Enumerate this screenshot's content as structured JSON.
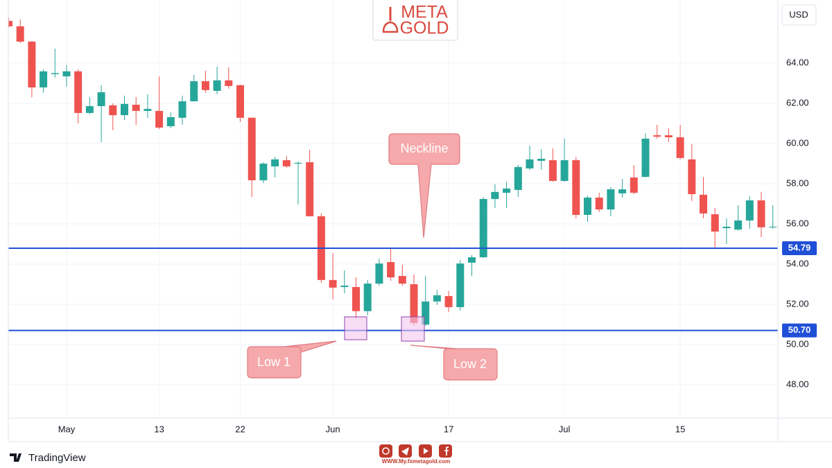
{
  "chart_data": {
    "type": "candlestick",
    "currency": "USD",
    "categories": [
      null,
      null,
      null,
      null,
      null,
      "May",
      null,
      null,
      null,
      null,
      null,
      null,
      null,
      "13",
      null,
      null,
      null,
      null,
      null,
      null,
      "22",
      null,
      null,
      null,
      null,
      null,
      null,
      null,
      "Jun",
      null,
      null,
      null,
      null,
      null,
      null,
      null,
      null,
      null,
      "17",
      null,
      null,
      null,
      null,
      null,
      null,
      null,
      null,
      null,
      "Jul",
      null,
      null,
      null,
      null,
      null,
      null,
      null,
      null,
      null,
      "15",
      null,
      null,
      null,
      null,
      null,
      null,
      null,
      null
    ],
    "series": [
      {
        "open": [
          66.1,
          65.83,
          65.07,
          62.79,
          63.45,
          63.34,
          63.59,
          61.52,
          61.86,
          61.9,
          61.41,
          61.93,
          61.62,
          61.62,
          60.86,
          61.28,
          62.1,
          63.1,
          62.62,
          63.14,
          62.9,
          61.28,
          58.17,
          58.86,
          59.17,
          59.0,
          59.07,
          56.38,
          53.21,
          52.86,
          52.86,
          51.66,
          53.03,
          54.1,
          53.41,
          53.0,
          50.99,
          52.14,
          52.41,
          51.86,
          54.07,
          54.34,
          57.24,
          57.55,
          57.69,
          58.76,
          59.14,
          59.17,
          58.14,
          59.17,
          56.45,
          57.31,
          56.72,
          57.52,
          58.31,
          58.34,
          60.41,
          60.41,
          60.31,
          59.21,
          57.45,
          56.48,
          55.79,
          55.72,
          56.17,
          57.17,
          55.83
        ],
        "high": [
          66.28,
          66.17,
          65.1,
          63.69,
          64.72,
          63.9,
          63.69,
          62.3,
          62.9,
          62.0,
          62.38,
          62.31,
          62.45,
          63.34,
          61.55,
          62.38,
          63.41,
          63.62,
          63.83,
          63.79,
          62.93,
          61.31,
          59.07,
          59.34,
          59.38,
          59.1,
          59.69,
          56.52,
          54.55,
          53.69,
          53.34,
          53.21,
          54.28,
          54.79,
          53.97,
          53.48,
          53.41,
          52.72,
          52.66,
          54.21,
          54.45,
          57.34,
          57.97,
          58.1,
          58.93,
          59.9,
          59.72,
          59.76,
          60.24,
          59.34,
          57.41,
          57.55,
          57.83,
          58.24,
          58.93,
          60.52,
          60.93,
          60.76,
          60.93,
          59.97,
          58.34,
          56.79,
          56.28,
          56.93,
          57.38,
          57.59,
          56.93
        ],
        "low": [
          65.76,
          65.0,
          62.3,
          62.52,
          63.28,
          62.83,
          61.0,
          61.45,
          60.07,
          60.66,
          61.17,
          60.93,
          61.28,
          60.72,
          60.76,
          60.93,
          62.1,
          62.52,
          62.45,
          62.72,
          61.07,
          57.34,
          58.03,
          58.31,
          58.79,
          56.97,
          56.38,
          53.07,
          52.24,
          52.55,
          51.28,
          51.45,
          52.93,
          53.17,
          52.93,
          50.93,
          50.93,
          51.97,
          51.62,
          51.69,
          53.41,
          54.31,
          56.79,
          56.79,
          57.34,
          58.69,
          58.69,
          58.1,
          58.1,
          56.28,
          56.1,
          56.59,
          56.38,
          57.31,
          57.48,
          58.31,
          60.24,
          60.07,
          59.21,
          57.14,
          56.28,
          54.83,
          55.0,
          55.66,
          55.76,
          55.34,
          55.76
        ],
        "close": [
          65.83,
          65.07,
          62.79,
          63.59,
          63.5,
          63.59,
          61.52,
          61.86,
          62.55,
          61.41,
          61.97,
          61.62,
          61.72,
          60.79,
          61.31,
          62.1,
          63.1,
          62.66,
          63.14,
          62.86,
          61.28,
          58.17,
          59.0,
          59.21,
          58.86,
          59.04,
          56.38,
          53.21,
          52.83,
          52.93,
          51.66,
          53.03,
          54.03,
          53.34,
          53.03,
          51.07,
          52.14,
          52.45,
          51.86,
          54.03,
          54.34,
          57.24,
          57.59,
          57.76,
          58.83,
          59.21,
          59.24,
          58.14,
          59.17,
          56.45,
          57.31,
          56.72,
          57.72,
          57.72,
          57.55,
          60.24,
          60.34,
          60.31,
          59.28,
          57.48,
          56.52,
          55.62,
          55.86,
          56.17,
          57.17,
          55.83,
          55.86
        ]
      }
    ],
    "up_color": "#26a69a",
    "down_color": "#ef5350",
    "ylim": [
      46.34,
      67.14
    ],
    "yticks": [
      {
        "value": 48,
        "label": "48.00"
      },
      {
        "value": 50,
        "label": "50.00"
      },
      {
        "value": 52,
        "label": "52.00"
      },
      {
        "value": 54,
        "label": "54.00"
      },
      {
        "value": 56,
        "label": "56.00"
      },
      {
        "value": 58,
        "label": "58.00"
      },
      {
        "value": 60,
        "label": "60.00"
      },
      {
        "value": 62,
        "label": "62.00"
      },
      {
        "value": 64,
        "label": "64.00"
      }
    ],
    "grid": true,
    "horizontal_lines": [
      {
        "value": 54.79,
        "label": "54.79",
        "color": "#1f4fd6"
      },
      {
        "value": 50.7,
        "label": "50.70",
        "color": "#1f4fd6"
      }
    ],
    "annotations": [
      {
        "text": "Neckline"
      },
      {
        "text": "Low 1"
      },
      {
        "text": "Low 2"
      }
    ]
  },
  "branding": {
    "logo_line1": "META",
    "logo_line2": "GOLD",
    "website": "WWW.My.fxmetagold.com",
    "platform": "TradingView"
  }
}
